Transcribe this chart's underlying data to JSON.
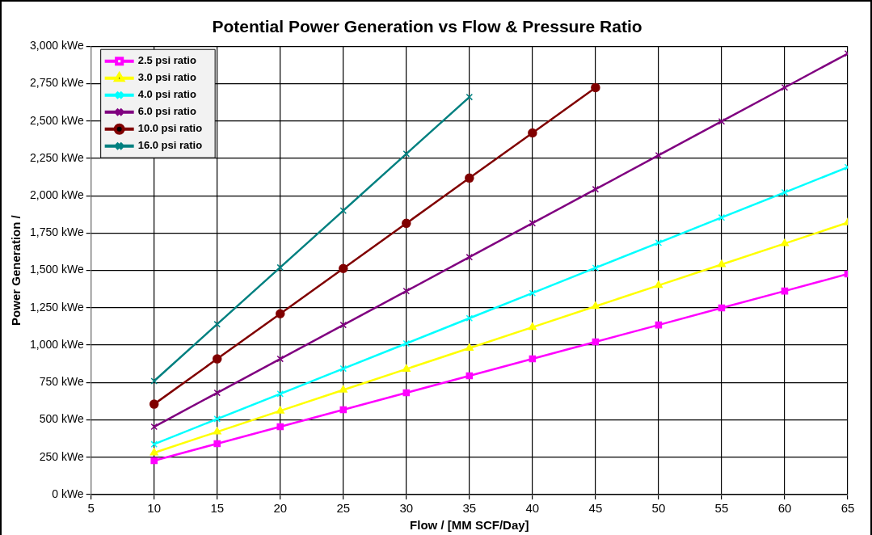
{
  "chart_data": {
    "type": "line",
    "title": "Potential Power Generation vs Flow & Pressure Ratio",
    "xlabel": "Flow / [MM SCF/Day]",
    "ylabel": "Power Generation /",
    "x": [
      10,
      15,
      20,
      25,
      30,
      35,
      40,
      45,
      50,
      55,
      60,
      65
    ],
    "series": [
      {
        "name": "2.5 psi ratio",
        "color": "#ff00ff",
        "marker": "square",
        "values": [
          227,
          341,
          454,
          568,
          681,
          795,
          908,
          1022,
          1135,
          1249,
          1362,
          1476
        ]
      },
      {
        "name": "3.0 psi ratio",
        "color": "#ffff00",
        "marker": "triangle",
        "values": [
          280,
          420,
          560,
          700,
          840,
          980,
          1120,
          1260,
          1400,
          1540,
          1680,
          1820
        ]
      },
      {
        "name": "4.0 psi ratio",
        "color": "#00ffff",
        "marker": "cross",
        "values": [
          337,
          506,
          674,
          843,
          1011,
          1180,
          1348,
          1517,
          1685,
          1854,
          2022,
          2191
        ]
      },
      {
        "name": "6.0 psi ratio",
        "color": "#800080",
        "marker": "cross",
        "values": [
          454,
          681,
          908,
          1135,
          1362,
          1589,
          1816,
          2043,
          2270,
          2497,
          2724,
          2951
        ]
      },
      {
        "name": "10.0 psi ratio",
        "color": "#800000",
        "marker": "circle",
        "x": [
          10,
          15,
          20,
          25,
          30,
          35,
          40,
          45
        ],
        "values": [
          605,
          908,
          1210,
          1513,
          1815,
          2118,
          2420,
          2723
        ]
      },
      {
        "name": "16.0 psi ratio",
        "color": "#008080",
        "marker": "cross",
        "x": [
          10,
          15,
          20,
          25,
          30,
          35
        ],
        "values": [
          760,
          1140,
          1520,
          1900,
          2280,
          2660
        ]
      }
    ],
    "xlim": [
      5,
      65
    ],
    "xticks": [
      5,
      10,
      15,
      20,
      25,
      30,
      35,
      40,
      45,
      50,
      55,
      60,
      65
    ],
    "ylim": [
      0,
      3000
    ],
    "yticks": [
      {
        "value": 0,
        "label": "0 kWe"
      },
      {
        "value": 250,
        "label": "250 kWe"
      },
      {
        "value": 500,
        "label": "500 kWe"
      },
      {
        "value": 750,
        "label": "750 kWe"
      },
      {
        "value": 1000,
        "label": "1,000 kWe"
      },
      {
        "value": 1250,
        "label": "1,250 kWe"
      },
      {
        "value": 1500,
        "label": "1,500 kWe"
      },
      {
        "value": 1750,
        "label": "1,750 kWe"
      },
      {
        "value": 2000,
        "label": "2,000 kWe"
      },
      {
        "value": 2250,
        "label": "2,250 kWe"
      },
      {
        "value": 2500,
        "label": "2,500 kWe"
      },
      {
        "value": 2750,
        "label": "2,750 kWe"
      },
      {
        "value": 3000,
        "label": "3,000 kWe"
      }
    ],
    "grid": true,
    "legend": "top left",
    "line_style": "solid"
  }
}
